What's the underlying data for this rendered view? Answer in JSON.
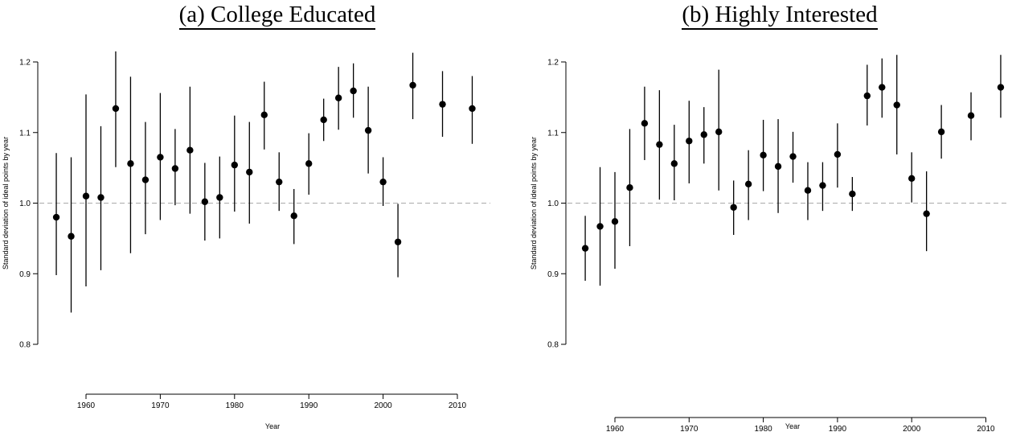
{
  "chart_data": [
    {
      "type": "scatter",
      "title": "(a) College Educated",
      "xlabel": "Year",
      "ylabel": "Standard deviation of ideal points by year",
      "xlim": [
        1954,
        2015
      ],
      "ylim": [
        0.8,
        1.2
      ],
      "x_ticks": [
        1960,
        1970,
        1980,
        1990,
        2000,
        2010
      ],
      "y_ticks": [
        0.8,
        0.9,
        1.0,
        1.1,
        1.2
      ],
      "x_tick_labels": [
        "1960",
        "1970",
        "1980",
        "1990",
        "2000",
        "2010"
      ],
      "y_tick_labels": [
        "0.8",
        "0.9",
        "1.0",
        "1.1",
        "1.2"
      ],
      "reference_line": 1.0,
      "error_bars": true,
      "points": [
        {
          "x": 1956,
          "y": 0.98,
          "lo": 0.898,
          "hi": 1.071
        },
        {
          "x": 1958,
          "y": 0.953,
          "lo": 0.845,
          "hi": 1.065
        },
        {
          "x": 1960,
          "y": 1.01,
          "lo": 0.882,
          "hi": 1.154
        },
        {
          "x": 1962,
          "y": 1.008,
          "lo": 0.905,
          "hi": 1.109
        },
        {
          "x": 1964,
          "y": 1.134,
          "lo": 1.051,
          "hi": 1.215
        },
        {
          "x": 1966,
          "y": 1.056,
          "lo": 0.929,
          "hi": 1.179
        },
        {
          "x": 1968,
          "y": 1.033,
          "lo": 0.956,
          "hi": 1.115
        },
        {
          "x": 1970,
          "y": 1.065,
          "lo": 0.976,
          "hi": 1.156
        },
        {
          "x": 1972,
          "y": 1.049,
          "lo": 0.997,
          "hi": 1.105
        },
        {
          "x": 1974,
          "y": 1.075,
          "lo": 0.985,
          "hi": 1.165
        },
        {
          "x": 1976,
          "y": 1.002,
          "lo": 0.947,
          "hi": 1.057
        },
        {
          "x": 1978,
          "y": 1.008,
          "lo": 0.95,
          "hi": 1.066
        },
        {
          "x": 1980,
          "y": 1.054,
          "lo": 0.988,
          "hi": 1.124
        },
        {
          "x": 1982,
          "y": 1.044,
          "lo": 0.971,
          "hi": 1.115
        },
        {
          "x": 1984,
          "y": 1.125,
          "lo": 1.076,
          "hi": 1.172
        },
        {
          "x": 1986,
          "y": 1.03,
          "lo": 0.989,
          "hi": 1.072
        },
        {
          "x": 1988,
          "y": 0.982,
          "lo": 0.942,
          "hi": 1.02
        },
        {
          "x": 1990,
          "y": 1.056,
          "lo": 1.012,
          "hi": 1.099
        },
        {
          "x": 1992,
          "y": 1.118,
          "lo": 1.088,
          "hi": 1.148
        },
        {
          "x": 1994,
          "y": 1.149,
          "lo": 1.104,
          "hi": 1.193
        },
        {
          "x": 1996,
          "y": 1.159,
          "lo": 1.121,
          "hi": 1.198
        },
        {
          "x": 1998,
          "y": 1.103,
          "lo": 1.042,
          "hi": 1.165
        },
        {
          "x": 2000,
          "y": 1.03,
          "lo": 0.996,
          "hi": 1.065
        },
        {
          "x": 2002,
          "y": 0.945,
          "lo": 0.895,
          "hi": 0.999
        },
        {
          "x": 2004,
          "y": 1.167,
          "lo": 1.119,
          "hi": 1.213
        },
        {
          "x": 2008,
          "y": 1.14,
          "lo": 1.094,
          "hi": 1.187
        },
        {
          "x": 2012,
          "y": 1.134,
          "lo": 1.084,
          "hi": 1.18
        }
      ]
    },
    {
      "type": "scatter",
      "title": "(b) Highly Interested",
      "xlabel": "Year",
      "ylabel": "Standard deviation of ideal points by year",
      "xlim": [
        1954,
        2015
      ],
      "ylim": [
        0.8,
        1.2
      ],
      "x_ticks": [
        1960,
        1970,
        1980,
        1990,
        2000,
        2010
      ],
      "y_ticks": [
        0.8,
        0.9,
        1.0,
        1.1,
        1.2
      ],
      "x_tick_labels": [
        "1960",
        "1970",
        "1980",
        "1990",
        "2000",
        "2010"
      ],
      "y_tick_labels": [
        "0.8",
        "0.9",
        "1.0",
        "1.1",
        "1.2"
      ],
      "reference_line": 1.0,
      "error_bars": true,
      "points": [
        {
          "x": 1956,
          "y": 0.936,
          "lo": 0.89,
          "hi": 0.982
        },
        {
          "x": 1958,
          "y": 0.967,
          "lo": 0.883,
          "hi": 1.051
        },
        {
          "x": 1960,
          "y": 0.974,
          "lo": 0.907,
          "hi": 1.044
        },
        {
          "x": 1962,
          "y": 1.022,
          "lo": 0.939,
          "hi": 1.105
        },
        {
          "x": 1964,
          "y": 1.113,
          "lo": 1.061,
          "hi": 1.165
        },
        {
          "x": 1966,
          "y": 1.083,
          "lo": 1.005,
          "hi": 1.16
        },
        {
          "x": 1968,
          "y": 1.056,
          "lo": 1.004,
          "hi": 1.111
        },
        {
          "x": 1970,
          "y": 1.088,
          "lo": 1.028,
          "hi": 1.145
        },
        {
          "x": 1972,
          "y": 1.097,
          "lo": 1.056,
          "hi": 1.136
        },
        {
          "x": 1974,
          "y": 1.101,
          "lo": 1.018,
          "hi": 1.189
        },
        {
          "x": 1976,
          "y": 0.994,
          "lo": 0.955,
          "hi": 1.032
        },
        {
          "x": 1978,
          "y": 1.027,
          "lo": 0.976,
          "hi": 1.075
        },
        {
          "x": 1980,
          "y": 1.068,
          "lo": 1.017,
          "hi": 1.118
        },
        {
          "x": 1982,
          "y": 1.052,
          "lo": 0.986,
          "hi": 1.119
        },
        {
          "x": 1984,
          "y": 1.066,
          "lo": 1.029,
          "hi": 1.101
        },
        {
          "x": 1986,
          "y": 1.018,
          "lo": 0.976,
          "hi": 1.058
        },
        {
          "x": 1988,
          "y": 1.025,
          "lo": 0.989,
          "hi": 1.058
        },
        {
          "x": 1990,
          "y": 1.069,
          "lo": 1.022,
          "hi": 1.113
        },
        {
          "x": 1992,
          "y": 1.013,
          "lo": 0.989,
          "hi": 1.037
        },
        {
          "x": 1994,
          "y": 1.152,
          "lo": 1.11,
          "hi": 1.196
        },
        {
          "x": 1996,
          "y": 1.164,
          "lo": 1.121,
          "hi": 1.205
        },
        {
          "x": 1998,
          "y": 1.139,
          "lo": 1.069,
          "hi": 1.21
        },
        {
          "x": 2000,
          "y": 1.035,
          "lo": 1.001,
          "hi": 1.072
        },
        {
          "x": 2002,
          "y": 0.985,
          "lo": 0.932,
          "hi": 1.045
        },
        {
          "x": 2004,
          "y": 1.101,
          "lo": 1.063,
          "hi": 1.139
        },
        {
          "x": 2008,
          "y": 1.124,
          "lo": 1.089,
          "hi": 1.157
        },
        {
          "x": 2012,
          "y": 1.164,
          "lo": 1.121,
          "hi": 1.21
        }
      ]
    }
  ]
}
